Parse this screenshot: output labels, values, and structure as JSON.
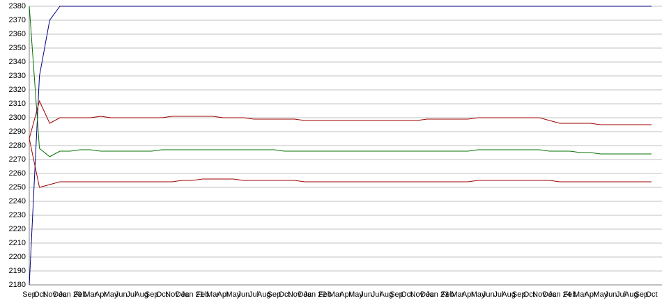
{
  "chart_data": {
    "type": "line",
    "categories": [
      "Sep",
      "Oct",
      "Nov",
      "Dec",
      "Jan 20",
      "Feb",
      "Mar",
      "Apr",
      "May",
      "Jun",
      "Jul",
      "Aug",
      "Sep",
      "Oct",
      "Nov",
      "Dec",
      "Jan 21",
      "Feb",
      "Mar",
      "Apr",
      "May",
      "Jun",
      "Jul",
      "Aug",
      "Sep",
      "Oct",
      "Nov",
      "Dec",
      "Jan 22",
      "Feb",
      "Mar",
      "Apr",
      "May",
      "Jun",
      "Jul",
      "Aug",
      "Sep",
      "Oct",
      "Nov",
      "Dec",
      "Jan 23",
      "Feb",
      "Mar",
      "Apr",
      "May",
      "Jun",
      "Jul",
      "Aug",
      "Sep",
      "Oct",
      "Nov",
      "Dec",
      "Jan 24",
      "Feb",
      "Mar",
      "Apr",
      "May",
      "Jun",
      "Jul",
      "Aug",
      "Sep",
      "Oct"
    ],
    "series": [
      {
        "color": "#000080",
        "values": [
          2180,
          2330,
          2370,
          2380,
          2380,
          2380,
          2380,
          2380,
          2380,
          2380,
          2380,
          2380,
          2380,
          2380,
          2380,
          2380,
          2380,
          2380,
          2380,
          2380,
          2380,
          2380,
          2380,
          2380,
          2380,
          2380,
          2380,
          2380,
          2380,
          2380,
          2380,
          2380,
          2380,
          2380,
          2380,
          2380,
          2380,
          2380,
          2380,
          2380,
          2380,
          2380,
          2380,
          2380,
          2380,
          2380,
          2380,
          2380,
          2380,
          2380,
          2380,
          2380,
          2380,
          2380,
          2380,
          2380,
          2380,
          2380,
          2380,
          2380,
          2380,
          2380
        ]
      },
      {
        "color": "#007000",
        "values": [
          2380,
          2278,
          2272,
          2276,
          2276,
          2277,
          2277,
          2276,
          2276,
          2276,
          2276,
          2276,
          2276,
          2277,
          2277,
          2277,
          2277,
          2277,
          2277,
          2277,
          2277,
          2277,
          2277,
          2277,
          2277,
          2276,
          2276,
          2276,
          2276,
          2276,
          2276,
          2276,
          2276,
          2276,
          2276,
          2276,
          2276,
          2276,
          2276,
          2276,
          2276,
          2276,
          2276,
          2276,
          2277,
          2277,
          2277,
          2277,
          2277,
          2277,
          2277,
          2276,
          2276,
          2276,
          2275,
          2275,
          2274,
          2274,
          2274,
          2274,
          2274,
          2274
        ]
      },
      {
        "color": "#a00000",
        "values": [
          2285,
          2312,
          2296,
          2300,
          2300,
          2300,
          2300,
          2301,
          2300,
          2300,
          2300,
          2300,
          2300,
          2300,
          2301,
          2301,
          2301,
          2301,
          2301,
          2300,
          2300,
          2300,
          2299,
          2299,
          2299,
          2299,
          2299,
          2298,
          2298,
          2298,
          2298,
          2298,
          2298,
          2298,
          2298,
          2298,
          2298,
          2298,
          2298,
          2299,
          2299,
          2299,
          2299,
          2299,
          2300,
          2300,
          2300,
          2300,
          2300,
          2300,
          2300,
          2298,
          2296,
          2296,
          2296,
          2296,
          2295,
          2295,
          2295,
          2295,
          2295,
          2295
        ]
      },
      {
        "color": "#a00000",
        "values": [
          2285,
          2250,
          2252,
          2254,
          2254,
          2254,
          2254,
          2254,
          2254,
          2254,
          2254,
          2254,
          2254,
          2254,
          2254,
          2255,
          2255,
          2256,
          2256,
          2256,
          2256,
          2255,
          2255,
          2255,
          2255,
          2255,
          2255,
          2254,
          2254,
          2254,
          2254,
          2254,
          2254,
          2254,
          2254,
          2254,
          2254,
          2254,
          2254,
          2254,
          2254,
          2254,
          2254,
          2254,
          2255,
          2255,
          2255,
          2255,
          2255,
          2255,
          2255,
          2255,
          2254,
          2254,
          2254,
          2254,
          2254,
          2254,
          2254,
          2254,
          2254,
          2254
        ]
      }
    ],
    "ylim": [
      2180,
      2380
    ],
    "yticks": [
      2180,
      2190,
      2200,
      2210,
      2220,
      2230,
      2240,
      2250,
      2260,
      2270,
      2280,
      2290,
      2300,
      2310,
      2320,
      2330,
      2340,
      2350,
      2360,
      2370,
      2380
    ],
    "grid": true
  }
}
